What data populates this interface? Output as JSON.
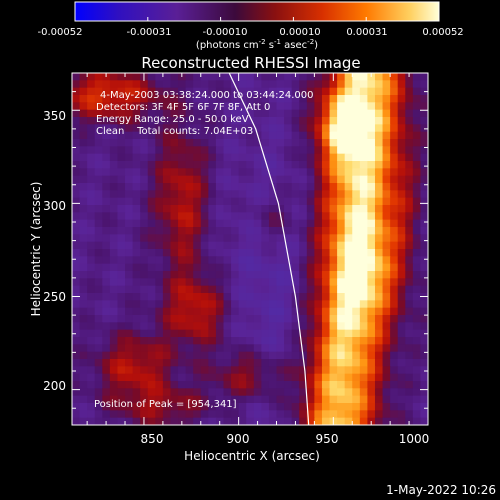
{
  "chart_data": {
    "type": "heatmap",
    "title": "Reconstructed RHESSI Image",
    "xlabel": "Heliocentric X (arcsec)",
    "ylabel": "Heliocentric Y (arcsec)",
    "xlim": [
      812,
      1000
    ],
    "ylim": [
      181,
      370
    ],
    "x_ticks": [
      850,
      900,
      950,
      1000
    ],
    "y_ticks": [
      200,
      250,
      300,
      350
    ],
    "grid": false,
    "colorbar": {
      "range": [
        -0.00052,
        0.00052
      ],
      "tick_labels": [
        "-0.00052",
        "-0.00031",
        "-0.00010",
        "0.00010",
        "0.00031",
        "0.00052"
      ],
      "label_main": "(photons cm",
      "label_exp1": "-2",
      "label_mid": " s",
      "label_exp2": "-1",
      "label_mid2": " asec",
      "label_exp3": "-2",
      "label_end": ")",
      "colors": [
        "#0000ff",
        "#3010c0",
        "#5a1f96",
        "#3c0a3c",
        "#8a1010",
        "#d83000",
        "#ff7a00",
        "#ffd060",
        "#ffffd8"
      ]
    },
    "info_lines": [
      "4-May-2003 03:38:24.000 to 03:44:24.000",
      "Detectors: 3F 4F 5F 6F 7F 8F, Att 0",
      "Energy Range: 25.0 - 50.0 keV",
      "Clean    Total counts: 7.04E+03"
    ],
    "peak_label": "Position of Peak = [954,341]",
    "peak": [
      954,
      341
    ],
    "total_counts": 7040,
    "limb_curve": [
      [
        895,
        370
      ],
      [
        909,
        340
      ],
      [
        921,
        300
      ],
      [
        930,
        250
      ],
      [
        935,
        210
      ],
      [
        937,
        181
      ]
    ]
  },
  "timestamp": "1-May-2022 10:26"
}
